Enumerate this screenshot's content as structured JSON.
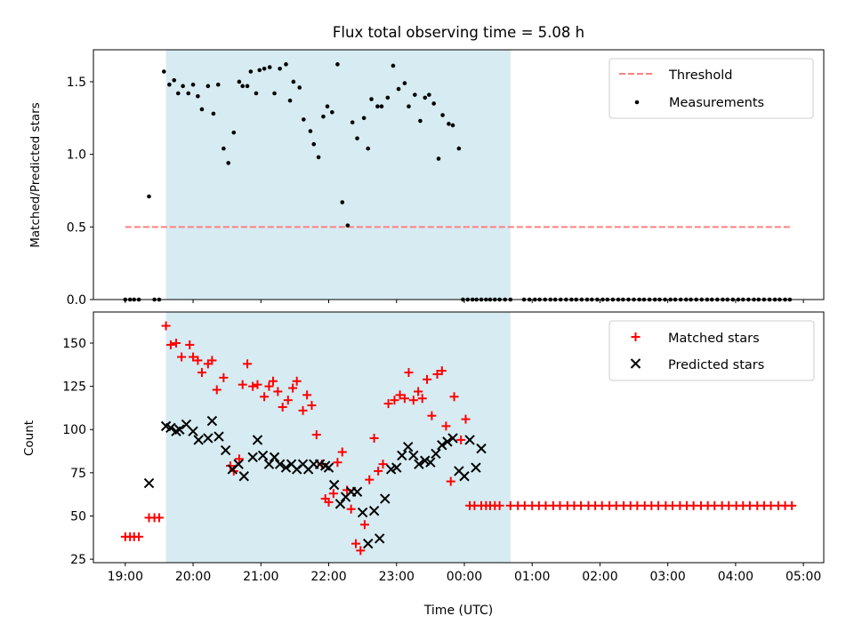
{
  "chart_data": [
    {
      "type": "scatter",
      "title": "Flux total observing time = 5.08 h",
      "xlabel": "",
      "ylabel": "Matched/Predicted stars",
      "x_unit": "hours since 19:00 UTC",
      "xlim": [
        -0.47,
        10.3
      ],
      "ylim": [
        0.0,
        1.72
      ],
      "yticks": [
        0.0,
        0.5,
        1.0,
        1.5
      ],
      "ytick_labels": [
        "0.0",
        "0.5",
        "1.0",
        "1.5"
      ],
      "shaded_span": [
        0.6,
        5.68
      ],
      "legend": {
        "position": "top-right",
        "entries": [
          "Threshold",
          "Measurements"
        ]
      },
      "threshold": {
        "name": "Threshold",
        "y": 0.5,
        "x": [
          0.0,
          9.8
        ],
        "color": "#ff7f7f"
      },
      "series": [
        {
          "name": "Measurements",
          "x": [
            0.0,
            0.07,
            0.13,
            0.2,
            0.35,
            0.43,
            0.5,
            0.57,
            0.65,
            0.72,
            0.78,
            0.85,
            0.93,
            1.0,
            1.07,
            1.13,
            1.22,
            1.3,
            1.37,
            1.45,
            1.52,
            1.6,
            1.68,
            1.73,
            1.8,
            1.85,
            1.93,
            1.98,
            2.05,
            2.13,
            2.2,
            2.28,
            2.37,
            2.43,
            2.48,
            2.57,
            2.63,
            2.73,
            2.78,
            2.85,
            2.92,
            2.98,
            3.05,
            3.13,
            3.2,
            3.28,
            3.35,
            3.42,
            3.52,
            3.58,
            3.63,
            3.72,
            3.78,
            3.87,
            3.95,
            4.03,
            4.12,
            4.18,
            4.27,
            4.35,
            4.42,
            4.48,
            4.55,
            4.62,
            4.68,
            4.77,
            4.83,
            4.92,
            4.98,
            5.05,
            5.12,
            5.18,
            5.25,
            5.32,
            5.38,
            5.45,
            5.52,
            5.6,
            5.68,
            5.88,
            5.96,
            6.04,
            6.11,
            6.19,
            6.27,
            6.34,
            6.42,
            6.5,
            6.58,
            6.65,
            6.73,
            6.81,
            6.88,
            6.96,
            7.04,
            7.11,
            7.19,
            7.27,
            7.34,
            7.42,
            7.5,
            7.58,
            7.65,
            7.73,
            7.81,
            7.88,
            7.96,
            8.04,
            8.11,
            8.19,
            8.27,
            8.34,
            8.42,
            8.5,
            8.58,
            8.65,
            8.73,
            8.81,
            8.88,
            8.96,
            9.04,
            9.11,
            9.19,
            9.27,
            9.34,
            9.42,
            9.5,
            9.58,
            9.65,
            9.73,
            9.8
          ],
          "y": [
            0.0,
            0.0,
            0.0,
            0.0,
            0.71,
            0.0,
            0.0,
            1.57,
            1.48,
            1.51,
            1.42,
            1.47,
            1.42,
            1.48,
            1.4,
            1.31,
            1.47,
            1.28,
            1.48,
            1.04,
            0.94,
            1.15,
            1.5,
            1.47,
            1.47,
            1.57,
            1.42,
            1.58,
            1.59,
            1.6,
            1.42,
            1.59,
            1.62,
            1.37,
            1.5,
            1.46,
            1.24,
            1.16,
            1.07,
            0.98,
            1.26,
            1.33,
            1.29,
            1.62,
            0.67,
            0.51,
            1.22,
            1.11,
            1.25,
            1.04,
            1.38,
            1.33,
            1.33,
            1.39,
            1.61,
            1.45,
            1.49,
            1.33,
            1.41,
            1.23,
            1.39,
            1.41,
            1.35,
            0.97,
            1.27,
            1.21,
            1.2,
            1.04,
            0.0,
            0.0,
            0.0,
            0.0,
            0.0,
            0.0,
            0.0,
            0.0,
            0.0,
            0.0,
            0.0,
            0.0,
            0.0,
            0.0,
            0.0,
            0.0,
            0.0,
            0.0,
            0.0,
            0.0,
            0.0,
            0.0,
            0.0,
            0.0,
            0.0,
            0.0,
            0.0,
            0.0,
            0.0,
            0.0,
            0.0,
            0.0,
            0.0,
            0.0,
            0.0,
            0.0,
            0.0,
            0.0,
            0.0,
            0.0,
            0.0,
            0.0,
            0.0,
            0.0,
            0.0,
            0.0,
            0.0,
            0.0,
            0.0,
            0.0,
            0.0,
            0.0,
            0.0,
            0.0,
            0.0,
            0.0,
            0.0,
            0.0,
            0.0,
            0.0,
            0.0,
            0.0,
            0.0
          ],
          "color": "#000000"
        }
      ]
    },
    {
      "type": "scatter",
      "title": "",
      "xlabel": "Time (UTC)",
      "ylabel": "Count",
      "x_unit": "hours since 19:00 UTC",
      "xlim": [
        -0.47,
        10.3
      ],
      "ylim": [
        23,
        168
      ],
      "yticks": [
        25,
        50,
        75,
        100,
        125,
        150
      ],
      "ytick_labels": [
        "25",
        "50",
        "75",
        "100",
        "125",
        "150"
      ],
      "xticks": [
        0,
        1,
        2,
        3,
        4,
        5,
        6,
        7,
        8,
        9,
        10
      ],
      "xtick_labels": [
        "19:00",
        "20:00",
        "21:00",
        "22:00",
        "23:00",
        "00:00",
        "01:00",
        "02:00",
        "03:00",
        "04:00",
        "05:00"
      ],
      "shaded_span": [
        0.6,
        5.68
      ],
      "legend": {
        "position": "top-right",
        "entries": [
          "Matched stars",
          "Predicted stars"
        ]
      },
      "series": [
        {
          "name": "Matched stars",
          "marker": "plus",
          "color": "#ff0000",
          "x": [
            0.0,
            0.07,
            0.13,
            0.2,
            0.35,
            0.43,
            0.5,
            0.6,
            0.67,
            0.75,
            0.83,
            0.95,
            1.0,
            1.07,
            1.13,
            1.22,
            1.28,
            1.35,
            1.45,
            1.55,
            1.6,
            1.68,
            1.73,
            1.8,
            1.88,
            1.95,
            2.05,
            2.12,
            2.18,
            2.25,
            2.32,
            2.4,
            2.47,
            2.53,
            2.62,
            2.68,
            2.75,
            2.82,
            2.9,
            2.95,
            3.0,
            3.07,
            3.13,
            3.2,
            3.27,
            3.33,
            3.4,
            3.47,
            3.53,
            3.6,
            3.67,
            3.73,
            3.8,
            3.88,
            3.97,
            4.05,
            4.12,
            4.18,
            4.25,
            4.32,
            4.38,
            4.45,
            4.52,
            4.6,
            4.67,
            4.73,
            4.8,
            4.85,
            4.95,
            5.02,
            5.08,
            5.15,
            5.25,
            5.32,
            5.38,
            5.45,
            5.52,
            5.68,
            5.79,
            5.89,
            6.0,
            6.1,
            6.2,
            6.31,
            6.41,
            6.52,
            6.62,
            6.72,
            6.83,
            6.93,
            7.03,
            7.14,
            7.24,
            7.35,
            7.45,
            7.55,
            7.66,
            7.76,
            7.86,
            7.97,
            8.07,
            8.18,
            8.28,
            8.38,
            8.49,
            8.59,
            8.69,
            8.8,
            8.9,
            9.01,
            9.11,
            9.21,
            9.32,
            9.42,
            9.52,
            9.63,
            9.73,
            9.83
          ],
          "y": [
            38,
            38,
            38,
            38,
            49,
            49,
            49,
            160,
            149,
            150,
            142,
            149,
            142,
            140,
            133,
            138,
            140,
            123,
            130,
            79,
            76,
            83,
            126,
            138,
            125,
            126,
            119,
            125,
            128,
            122,
            113,
            117,
            124,
            128,
            111,
            120,
            114,
            97,
            80,
            60,
            58,
            63,
            81,
            87,
            65,
            54,
            34,
            30,
            45,
            71,
            95,
            76,
            80,
            115,
            117,
            120,
            118,
            133,
            117,
            122,
            118,
            129,
            108,
            132,
            134,
            102,
            70,
            119,
            94,
            106,
            56,
            56,
            56,
            56,
            56,
            56,
            56,
            56,
            56,
            56,
            56,
            56,
            56,
            56,
            56,
            56,
            56,
            56,
            56,
            56,
            56,
            56,
            56,
            56,
            56,
            56,
            56,
            56,
            56,
            56,
            56,
            56,
            56,
            56,
            56,
            56,
            56,
            56,
            56,
            56,
            56,
            56,
            56,
            56,
            56,
            56,
            56,
            56
          ]
        },
        {
          "name": "Predicted stars",
          "marker": "x",
          "color": "#000000",
          "x": [
            0.35,
            0.6,
            0.67,
            0.75,
            0.8,
            0.9,
            1.0,
            1.08,
            1.22,
            1.28,
            1.38,
            1.48,
            1.58,
            1.67,
            1.75,
            1.88,
            1.95,
            2.03,
            2.12,
            2.2,
            2.28,
            2.37,
            2.45,
            2.53,
            2.62,
            2.7,
            2.78,
            2.87,
            2.95,
            3.0,
            3.08,
            3.17,
            3.25,
            3.33,
            3.42,
            3.5,
            3.58,
            3.67,
            3.75,
            3.83,
            3.92,
            4.0,
            4.08,
            4.17,
            4.25,
            4.33,
            4.42,
            4.5,
            4.58,
            4.67,
            4.75,
            4.83,
            4.92,
            5.0,
            5.08,
            5.17,
            5.25
          ],
          "y": [
            69,
            102,
            101,
            99,
            100,
            103,
            99,
            94,
            95,
            105,
            96,
            88,
            77,
            80,
            73,
            84,
            94,
            85,
            80,
            84,
            80,
            78,
            80,
            77,
            80,
            77,
            80,
            80,
            79,
            78,
            68,
            57,
            61,
            64,
            64,
            52,
            34,
            53,
            37,
            60,
            77,
            78,
            85,
            90,
            85,
            80,
            82,
            81,
            86,
            91,
            93,
            95,
            76,
            73,
            94,
            78,
            89
          ]
        }
      ]
    }
  ]
}
